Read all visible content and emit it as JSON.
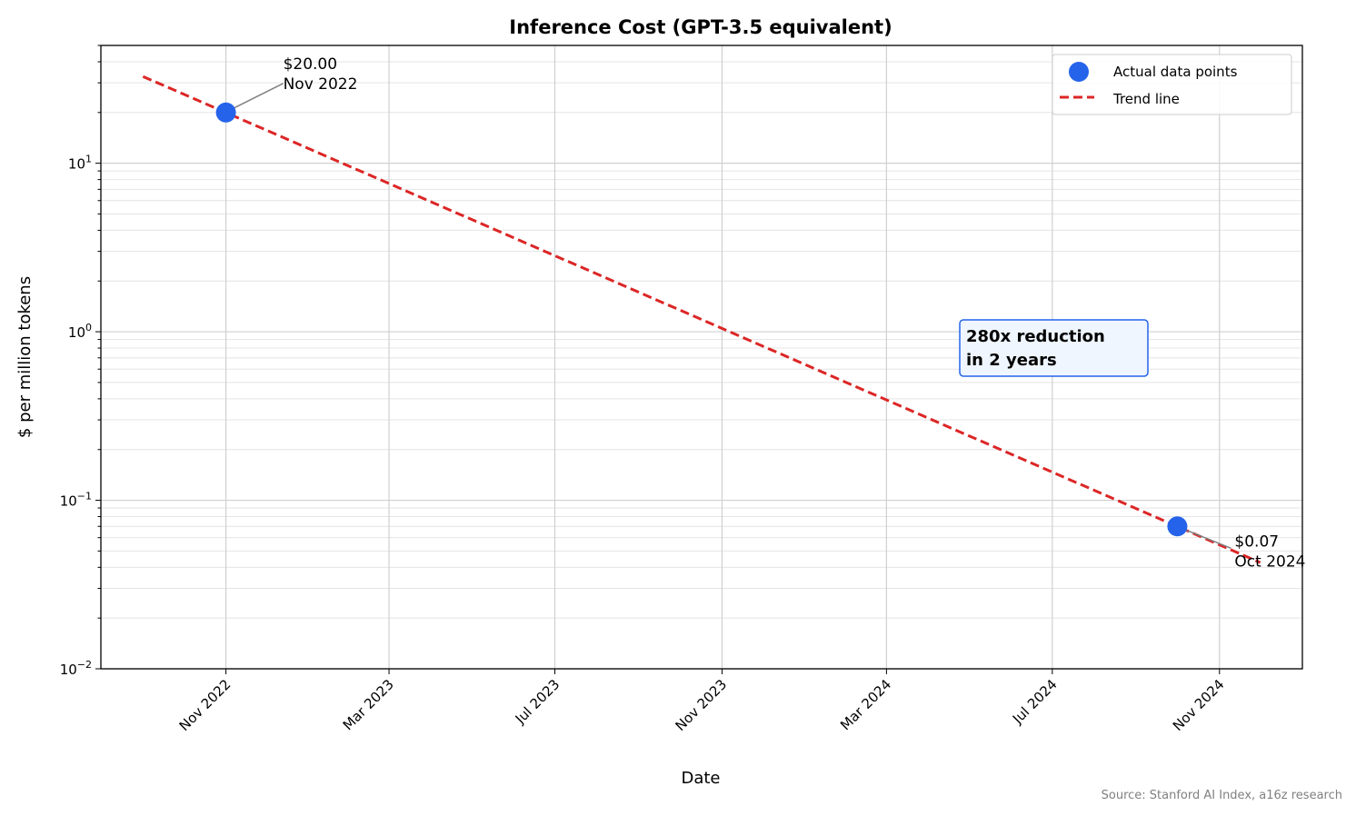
{
  "chart_data": {
    "type": "scatter",
    "title": "Inference Cost (GPT-3.5 equivalent)",
    "xlabel": "Date",
    "ylabel": "$ per million tokens",
    "yscale": "log",
    "ylim": [
      0.01,
      50
    ],
    "xlim": [
      "2022-08-01",
      "2025-01-01"
    ],
    "grid": true,
    "legend_position": "top-right",
    "x_ticks": [
      {
        "date": "2022-11-01",
        "label": "Nov 2022"
      },
      {
        "date": "2023-03-01",
        "label": "Mar 2023"
      },
      {
        "date": "2023-07-01",
        "label": "Jul 2023"
      },
      {
        "date": "2023-11-01",
        "label": "Nov 2023"
      },
      {
        "date": "2024-03-01",
        "label": "Mar 2024"
      },
      {
        "date": "2024-07-01",
        "label": "Jul 2024"
      },
      {
        "date": "2024-11-01",
        "label": "Nov 2024"
      }
    ],
    "y_ticks": [
      {
        "value": 0.01,
        "base": "10",
        "exp": "−2"
      },
      {
        "value": 0.1,
        "base": "10",
        "exp": "−1"
      },
      {
        "value": 1,
        "base": "10",
        "exp": "0"
      },
      {
        "value": 10,
        "base": "10",
        "exp": "1"
      }
    ],
    "series": [
      {
        "name": "Actual data points",
        "kind": "scatter",
        "color": "#2563eb",
        "points": [
          {
            "x": "2022-11-01",
            "y": 20.0
          },
          {
            "x": "2024-10-01",
            "y": 0.07
          }
        ]
      },
      {
        "name": "Trend line",
        "kind": "line",
        "style": "dashed",
        "color": "#dc2626",
        "points": [
          {
            "x": "2022-09-01",
            "y": 32.7
          },
          {
            "x": "2024-12-01",
            "y": 0.0427
          }
        ]
      }
    ],
    "annotations": [
      {
        "line1": "$20.00",
        "line2": "Nov 2022",
        "target": {
          "x": "2022-11-01",
          "y": 20.0
        }
      },
      {
        "line1": "$0.07",
        "line2": "Oct 2024",
        "target": {
          "x": "2024-10-01",
          "y": 0.07
        }
      }
    ],
    "callout": {
      "line1": "280x reduction",
      "line2": "in 2 years",
      "border_color": "#2563eb",
      "fill_color": "#eff6ff"
    },
    "source": "Source: Stanford AI Index, a16z research"
  }
}
